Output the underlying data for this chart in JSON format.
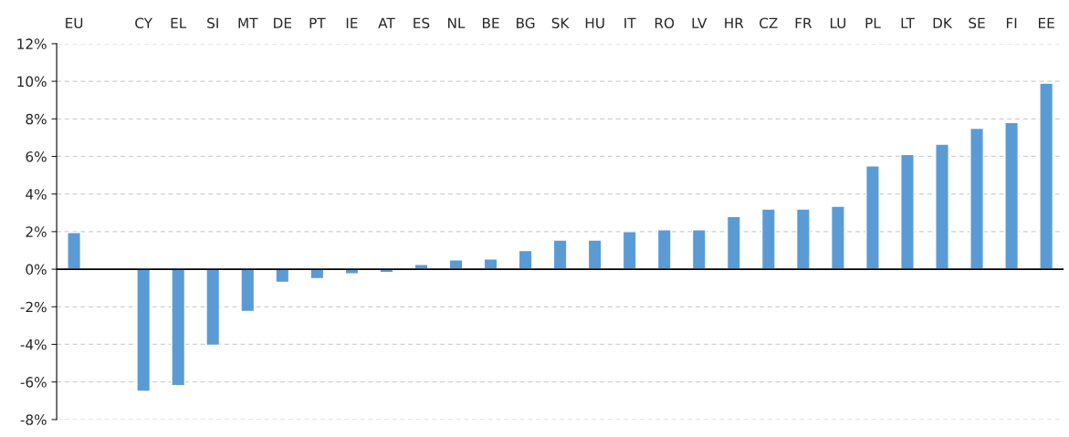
{
  "chart_data": {
    "type": "bar",
    "categories": [
      "EU",
      null,
      "CY",
      "EL",
      "SI",
      "MT",
      "DE",
      "PT",
      "IE",
      "AT",
      "ES",
      "NL",
      "BE",
      "BG",
      "SK",
      "HU",
      "IT",
      "RO",
      "LV",
      "HR",
      "CZ",
      "FR",
      "LU",
      "PL",
      "LT",
      "DK",
      "SE",
      "FI",
      "EE"
    ],
    "values": [
      1.95,
      null,
      -6.5,
      -6.2,
      -4.05,
      -2.25,
      -0.7,
      -0.5,
      -0.25,
      -0.18,
      0.25,
      0.5,
      0.55,
      1.0,
      1.55,
      1.55,
      2.0,
      2.1,
      2.1,
      2.8,
      3.2,
      3.2,
      3.35,
      5.5,
      6.1,
      6.65,
      7.5,
      7.8,
      9.9
    ],
    "color": "#5b9bd5",
    "ylim": [
      -8,
      12
    ],
    "yticks": [
      {
        "value": -8,
        "label": "-8%"
      },
      {
        "value": -6,
        "label": "-6%"
      },
      {
        "value": -4,
        "label": "-4%"
      },
      {
        "value": -2,
        "label": "-2%"
      },
      {
        "value": 0,
        "label": "0%"
      },
      {
        "value": 2,
        "label": "2%"
      },
      {
        "value": 4,
        "label": "4%"
      },
      {
        "value": 6,
        "label": "6%"
      },
      {
        "value": 8,
        "label": "8%"
      },
      {
        "value": 10,
        "label": "10%"
      },
      {
        "value": 12,
        "label": "12%"
      }
    ],
    "grid": "y"
  }
}
